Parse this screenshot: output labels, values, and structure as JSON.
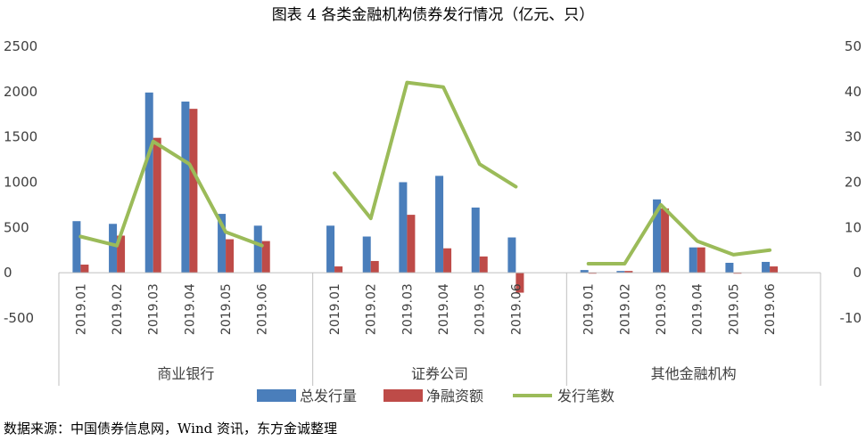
{
  "title": "图表 4   各类金融机构债券发行情况（亿元、只）",
  "source": "数据来源：中国债券信息网，Wind 资讯，东方金诚整理",
  "chart_data": {
    "type": "bar",
    "groups": [
      "商业银行",
      "证券公司",
      "其他金融机构"
    ],
    "categories": [
      "2019.01",
      "2019.02",
      "2019.03",
      "2019.04",
      "2019.05",
      "2019.06"
    ],
    "left_axis": {
      "ylim": [
        -500,
        2500
      ],
      "ticks": [
        "2500",
        "2000",
        "1500",
        "1000",
        "500",
        "0",
        "-500"
      ]
    },
    "right_axis": {
      "ylim": [
        -10,
        50
      ],
      "ticks": [
        "50",
        "40",
        "30",
        "20",
        "10",
        "0",
        "-10"
      ]
    },
    "colors": {
      "total": "#4a7ebb",
      "net": "#be4b48",
      "count": "#9bbb59"
    },
    "series": [
      {
        "name": "总发行量",
        "type": "bar",
        "axis": "left",
        "values": [
          [
            570,
            540,
            1990,
            1890,
            650,
            520
          ],
          [
            520,
            400,
            1000,
            1070,
            720,
            390
          ],
          [
            30,
            20,
            810,
            280,
            110,
            120
          ]
        ]
      },
      {
        "name": "净融资额",
        "type": "bar",
        "axis": "left",
        "values": [
          [
            90,
            410,
            1490,
            1810,
            370,
            350
          ],
          [
            70,
            130,
            640,
            270,
            180,
            -220
          ],
          [
            0,
            20,
            710,
            280,
            -10,
            70
          ]
        ]
      },
      {
        "name": "发行笔数",
        "type": "line",
        "axis": "right",
        "values": [
          [
            8,
            6,
            29,
            24,
            9,
            6
          ],
          [
            22,
            12,
            42,
            41,
            24,
            19
          ],
          [
            2,
            2,
            15,
            7,
            4,
            5
          ]
        ]
      }
    ]
  }
}
